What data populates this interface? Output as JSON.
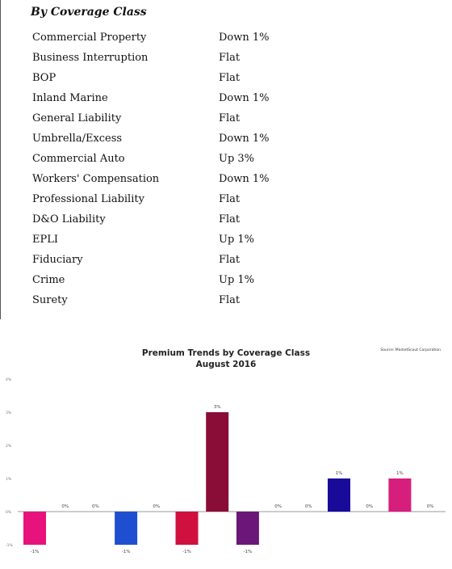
{
  "section": {
    "title": "By Coverage Class"
  },
  "coverage_rows": [
    {
      "name": "Commercial Property",
      "trend": "Down 1%"
    },
    {
      "name": "Business Interruption",
      "trend": "Flat"
    },
    {
      "name": "BOP",
      "trend": "Flat"
    },
    {
      "name": "Inland Marine",
      "trend": "Down 1%"
    },
    {
      "name": "General Liability",
      "trend": "Flat"
    },
    {
      "name": "Umbrella/Excess",
      "trend": "Down 1%"
    },
    {
      "name": "Commercial Auto",
      "trend": "Up 3%"
    },
    {
      "name": "Workers' Compensation",
      "trend": "Down 1%"
    },
    {
      "name": "Professional Liability",
      "trend": "Flat"
    },
    {
      "name": "D&O Liability",
      "trend": "Flat"
    },
    {
      "name": "EPLI",
      "trend": "Up 1%"
    },
    {
      "name": "Fiduciary",
      "trend": "Flat"
    },
    {
      "name": "Crime",
      "trend": "Up 1%"
    },
    {
      "name": "Surety",
      "trend": "Flat"
    }
  ],
  "chart_data": {
    "type": "bar",
    "title": "Premium Trends by Coverage Class",
    "subtitle": "August 2016",
    "source": "Source: MarketScout Corporation",
    "ylim": [
      -1,
      4
    ],
    "yticks": [
      -1,
      0,
      1,
      2,
      3,
      4
    ],
    "ytick_labels": [
      "-1%",
      "0%",
      "1%",
      "2%",
      "3%",
      "4%"
    ],
    "grid": false,
    "legend": "none",
    "values": [
      -1,
      0,
      0,
      -1,
      0,
      -1,
      3,
      -1,
      0,
      0,
      1,
      0,
      1,
      0
    ],
    "labels": [
      "-1%",
      "0%",
      "0%",
      "-1%",
      "0%",
      "-1%",
      "3%",
      "-1%",
      "0%",
      "0%",
      "1%",
      "0%",
      "1%",
      "0%"
    ],
    "colors": [
      "#e8127c",
      "#ffffff",
      "#ffffff",
      "#1f4fd0",
      "#ffffff",
      "#d0103f",
      "#8a0d38",
      "#6a1778",
      "#ffffff",
      "#ffffff",
      "#1a0a9a",
      "#ffffff",
      "#d61e7c",
      "#ffffff"
    ]
  }
}
